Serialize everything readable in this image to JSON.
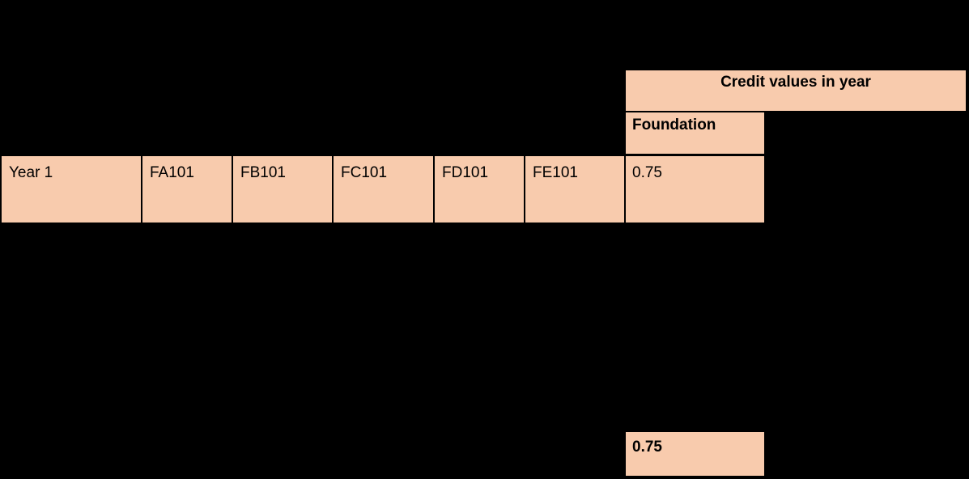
{
  "header": {
    "credit_values_label": "Credit values in year",
    "foundation_label": "Foundation"
  },
  "row": {
    "year_label": "Year 1",
    "modules": [
      "FA101",
      "FB101",
      "FC101",
      "FD101",
      "FE101"
    ],
    "foundation_credit": "0.75"
  },
  "total": {
    "foundation_total": "0.75"
  },
  "colors": {
    "background": "#000000",
    "cell_fill": "#f8cbad",
    "text": "#000000"
  }
}
